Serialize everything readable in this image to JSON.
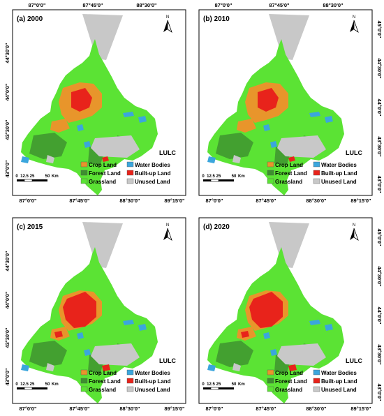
{
  "legend": {
    "title": "LULC",
    "items": [
      {
        "label": "Crop Land",
        "color": "#e8952b"
      },
      {
        "label": "Water Bodies",
        "color": "#3ba6dd"
      },
      {
        "label": "Forest Land",
        "color": "#3d8f2f"
      },
      {
        "label": "Built-up Land",
        "color": "#e8231b"
      },
      {
        "label": "Grassland",
        "color": "#5be334"
      },
      {
        "label": "Unused Land",
        "color": "#c8c8c8"
      }
    ]
  },
  "scale_bar": {
    "ticks": [
      "0",
      "12.5",
      "25",
      "50"
    ],
    "unit": "Km"
  },
  "north_arrow": {
    "label": "N",
    "icon": "north-arrow-icon"
  },
  "panels": [
    {
      "label": "(a) 2000",
      "top_ticks": [
        "87°0'0\"",
        "87°45'0\"",
        "88°30'0\""
      ],
      "bottom_ticks": [
        "87°0'0\"",
        "87°45'0\"",
        "88°30'0\"",
        "89°15'0\""
      ],
      "left_ticks": [
        "44°30'0\"",
        "44°0'0\"",
        "43°30'0\"",
        "43°0'0\""
      ],
      "right_ticks": []
    },
    {
      "label": "(b) 2010",
      "top_ticks": [
        "87°0'0\"",
        "87°45'0\"",
        "88°30'0\""
      ],
      "bottom_ticks": [
        "87°0'0\"",
        "87°45'0\"",
        "88°30'0\"",
        "89°15'0\""
      ],
      "left_ticks": [],
      "right_ticks": [
        "45°0'0\"",
        "44°30'0\"",
        "44°0'0\"",
        "43°30'0\"",
        "43°0'0\""
      ]
    },
    {
      "label": "(c) 2015",
      "top_ticks": [],
      "bottom_ticks": [
        "87°0'0\"",
        "87°45'0\"",
        "88°30'0\"",
        "89°15'0\""
      ],
      "left_ticks": [
        "44°30'0\"",
        "44°0'0\"",
        "43°30'0\"",
        "43°0'0\""
      ],
      "right_ticks": []
    },
    {
      "label": "(d) 2020",
      "top_ticks": [],
      "bottom_ticks": [
        "87°0'0\"",
        "87°45'0\"",
        "88°30'0\"",
        "89°15'0\""
      ],
      "left_ticks": [],
      "right_ticks": [
        "45°0'0\"",
        "44°30'0\"",
        "44°0'0\"",
        "43°30'0\"",
        "43°0'0\""
      ]
    }
  ]
}
